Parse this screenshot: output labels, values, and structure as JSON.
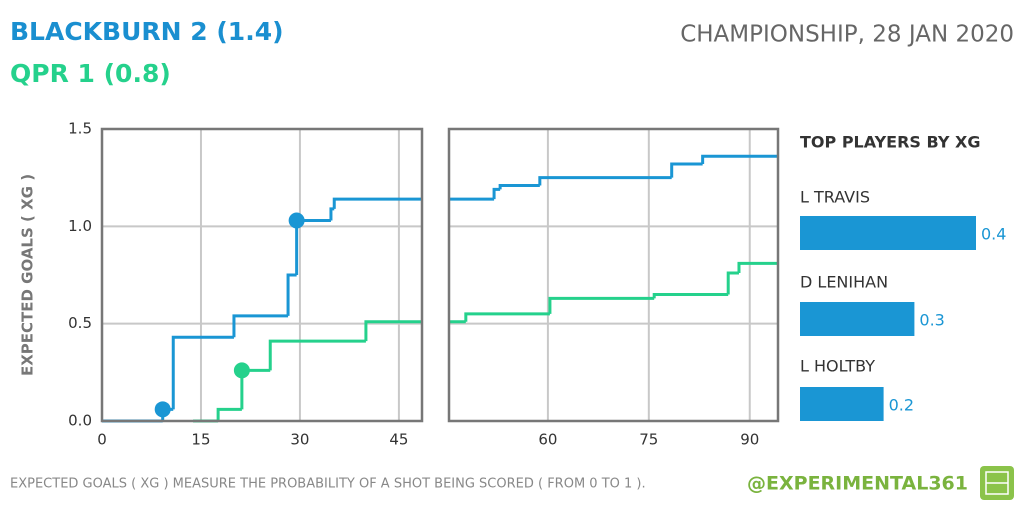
{
  "header": {
    "home": "BLACKBURN 2 (1.4)",
    "away": "QPR 1 (0.8)",
    "match": "CHAMPIONSHIP, 28 JAN 2020"
  },
  "footer": {
    "note": "EXPECTED GOALS ( XG ) MEASURE THE PROBABILITY OF A SHOT BEING SCORED ( FROM 0 TO 1 ).",
    "handle": "@EXPERIMENTAL361"
  },
  "chart_data": [
    {
      "type": "step",
      "ylabel": "EXPECTED GOALS ( XG )",
      "ylim": [
        0,
        1.5
      ],
      "yticks": [
        {
          "value": 0,
          "label": "0.0"
        },
        0.5,
        {
          "value": 1,
          "label": "1.0"
        },
        1.5
      ],
      "grid": true,
      "panels": [
        {
          "xlim": [
            0,
            48.5
          ],
          "xticks": [
            0,
            15,
            30,
            45
          ],
          "series": [
            {
              "color": "#1a96d4",
              "x": [
                0,
                9.2,
                10.8,
                20,
                28.2,
                29.5,
                34.7,
                35.2
              ],
              "values": [
                0,
                0.06,
                0.43,
                0.54,
                0.75,
                1.03,
                1.09,
                1.14
              ],
              "markers": {
                "x": [
                  9.2,
                  29.5
                ],
                "values": [
                  0.06,
                  1.03
                ]
              }
            },
            {
              "color": "#25d18c",
              "x": [
                13.8,
                17.6,
                21.2,
                25.5,
                40
              ],
              "values": [
                0,
                0.06,
                0.26,
                0.41,
                0.51
              ],
              "markers": {
                "x": [
                  21.2
                ],
                "values": [
                  0.26
                ]
              }
            }
          ]
        },
        {
          "xlim": [
            45.3,
            94.2
          ],
          "xticks": [
            60,
            75,
            90
          ],
          "series": [
            {
              "color": "#1a96d4",
              "x": [
                45.3,
                52,
                52.9,
                58.8,
                78.4,
                83
              ],
              "values": [
                1.14,
                1.19,
                1.21,
                1.25,
                1.32,
                1.36
              ]
            },
            {
              "color": "#25d18c",
              "x": [
                45.3,
                47.8,
                60.3,
                75.8,
                86.8,
                88.4
              ],
              "values": [
                0.51,
                0.55,
                0.63,
                0.65,
                0.76,
                0.81
              ]
            }
          ]
        }
      ]
    },
    {
      "type": "hbar",
      "title": "TOP PLAYERS BY XG",
      "color": "#1a96d4",
      "categories": [
        "L TRAVIS",
        "D LENIHAN",
        "L HOLTBY"
      ],
      "values": [
        0.4,
        0.26,
        0.19
      ],
      "value_labels": [
        "0.4",
        "0.3",
        "0.2"
      ],
      "xlim": [
        0,
        0.4
      ]
    }
  ]
}
